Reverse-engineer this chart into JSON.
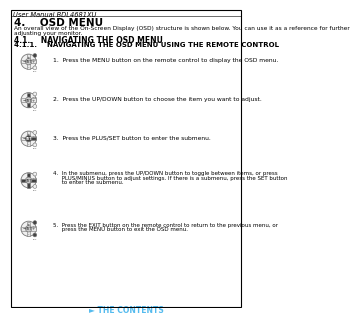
{
  "page_header": "User Manual BDL4681XU",
  "title": "4.    OSD MENU",
  "intro_line1": "An overall view of the On-Screen Display (OSD) structure is shown below. You can use it as a reference for further",
  "intro_line2": "adjusting your monitor.",
  "section1": "4.1.    NAVIGATING THE OSD MENU",
  "section2": "4.1.1.    NAVIGATING THE OSD MENU USING THE REMOTE CONTROL",
  "step1": "1.  Press the MENU button on the remote control to display the OSD menu.",
  "step2": "2.  Press the UP/DOWN button to choose the item you want to adjust.",
  "step3": "3.  Press the PLUS/SET button to enter the submenu.",
  "step4a": "4.  In the submenu, press the UP/DOWN button to toggle between items, or press",
  "step4b": "     PLUS/MINUS button to adjust settings. If there is a submenu, press the SET button",
  "step4c": "     to enter the submenu.",
  "step5a": "5.  Press the EXIT button on the remote control to return to the previous menu, or",
  "step5b": "     press the MENU button to exit the OSD menu.",
  "footer": "► THE CONTENTS",
  "bg_color": "#ffffff",
  "text_color": "#000000",
  "footer_color": "#55bbee",
  "border_color": "#000000",
  "dark_gray": "#444444",
  "light_gray": "#cccccc",
  "mid_gray": "#aaaaaa",
  "white": "#ffffff"
}
